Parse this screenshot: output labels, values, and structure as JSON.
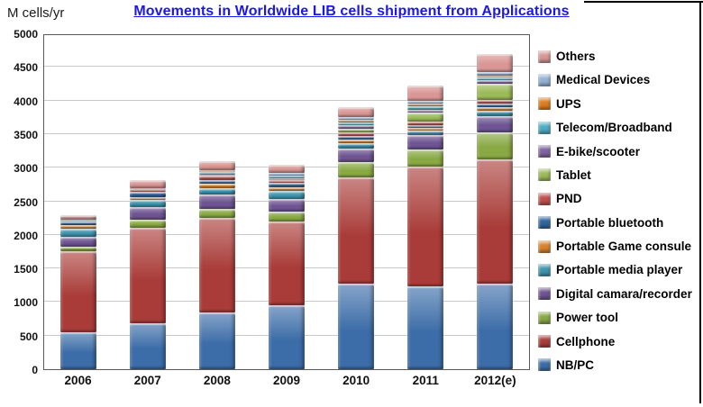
{
  "title": "Movements in Worldwide LIB cells shipment from Applications",
  "y_axis_title": "M cells/yr",
  "colors": {
    "title_text": "#1b17e8",
    "gridline": "#c9c9c9",
    "plot_border": "#595959",
    "frame_border": "#000000"
  },
  "chart_data": {
    "type": "bar",
    "stacked": true,
    "title": "Movements in Worldwide LIB cells shipment from Applications",
    "ylabel": "M cells/yr",
    "xlabel": "",
    "ylim": [
      0,
      5000
    ],
    "ytick_step": 500,
    "yticks": [
      "0",
      "500",
      "1000",
      "1500",
      "2000",
      "2500",
      "3000",
      "3500",
      "4000",
      "4500",
      "5000"
    ],
    "grid": true,
    "legend_position": "right",
    "legend_order": "reverse-of-series",
    "categories": [
      "2006",
      "2007",
      "2008",
      "2009",
      "2010",
      "2011",
      "2012(e)"
    ],
    "series": [
      {
        "name": "NB/PC",
        "color": "#3c6da8",
        "values": [
          550,
          680,
          850,
          950,
          1280,
          1230,
          1270
        ]
      },
      {
        "name": "Cellphone",
        "color": "#a93c38",
        "values": [
          1200,
          1430,
          1400,
          1250,
          1570,
          1780,
          1850
        ]
      },
      {
        "name": "Power tool",
        "color": "#88a943",
        "values": [
          70,
          120,
          130,
          150,
          230,
          260,
          400
        ]
      },
      {
        "name": "Digital camara/recorder",
        "color": "#6e5492",
        "values": [
          150,
          190,
          220,
          180,
          210,
          210,
          250
        ]
      },
      {
        "name": "Portable media player",
        "color": "#3e95ae",
        "values": [
          120,
          100,
          100,
          120,
          70,
          70,
          75
        ]
      },
      {
        "name": "Portable Game consule",
        "color": "#d9822b",
        "values": [
          60,
          40,
          60,
          60,
          60,
          45,
          60
        ]
      },
      {
        "name": "Portable bluetooth",
        "color": "#31659f",
        "values": [
          50,
          80,
          60,
          60,
          55,
          40,
          45
        ]
      },
      {
        "name": "PND",
        "color": "#c0504d",
        "values": [
          10,
          40,
          60,
          50,
          50,
          50,
          55
        ]
      },
      {
        "name": "Tablet",
        "color": "#9bbb59",
        "values": [
          0,
          0,
          0,
          0,
          60,
          130,
          240
        ]
      },
      {
        "name": "E-bike/scooter",
        "color": "#8064a2",
        "values": [
          0,
          0,
          20,
          20,
          45,
          50,
          55
        ]
      },
      {
        "name": "Telecom/Broadband",
        "color": "#4bacc6",
        "values": [
          20,
          20,
          40,
          40,
          50,
          50,
          40
        ]
      },
      {
        "name": "UPS",
        "color": "#e07c20",
        "values": [
          0,
          0,
          10,
          10,
          30,
          35,
          35
        ]
      },
      {
        "name": "Medical Devices",
        "color": "#95b3d7",
        "values": [
          0,
          0,
          20,
          40,
          40,
          50,
          45
        ]
      },
      {
        "name": "Others",
        "color": "#d99694",
        "values": [
          70,
          120,
          130,
          120,
          150,
          230,
          280
        ]
      }
    ]
  }
}
